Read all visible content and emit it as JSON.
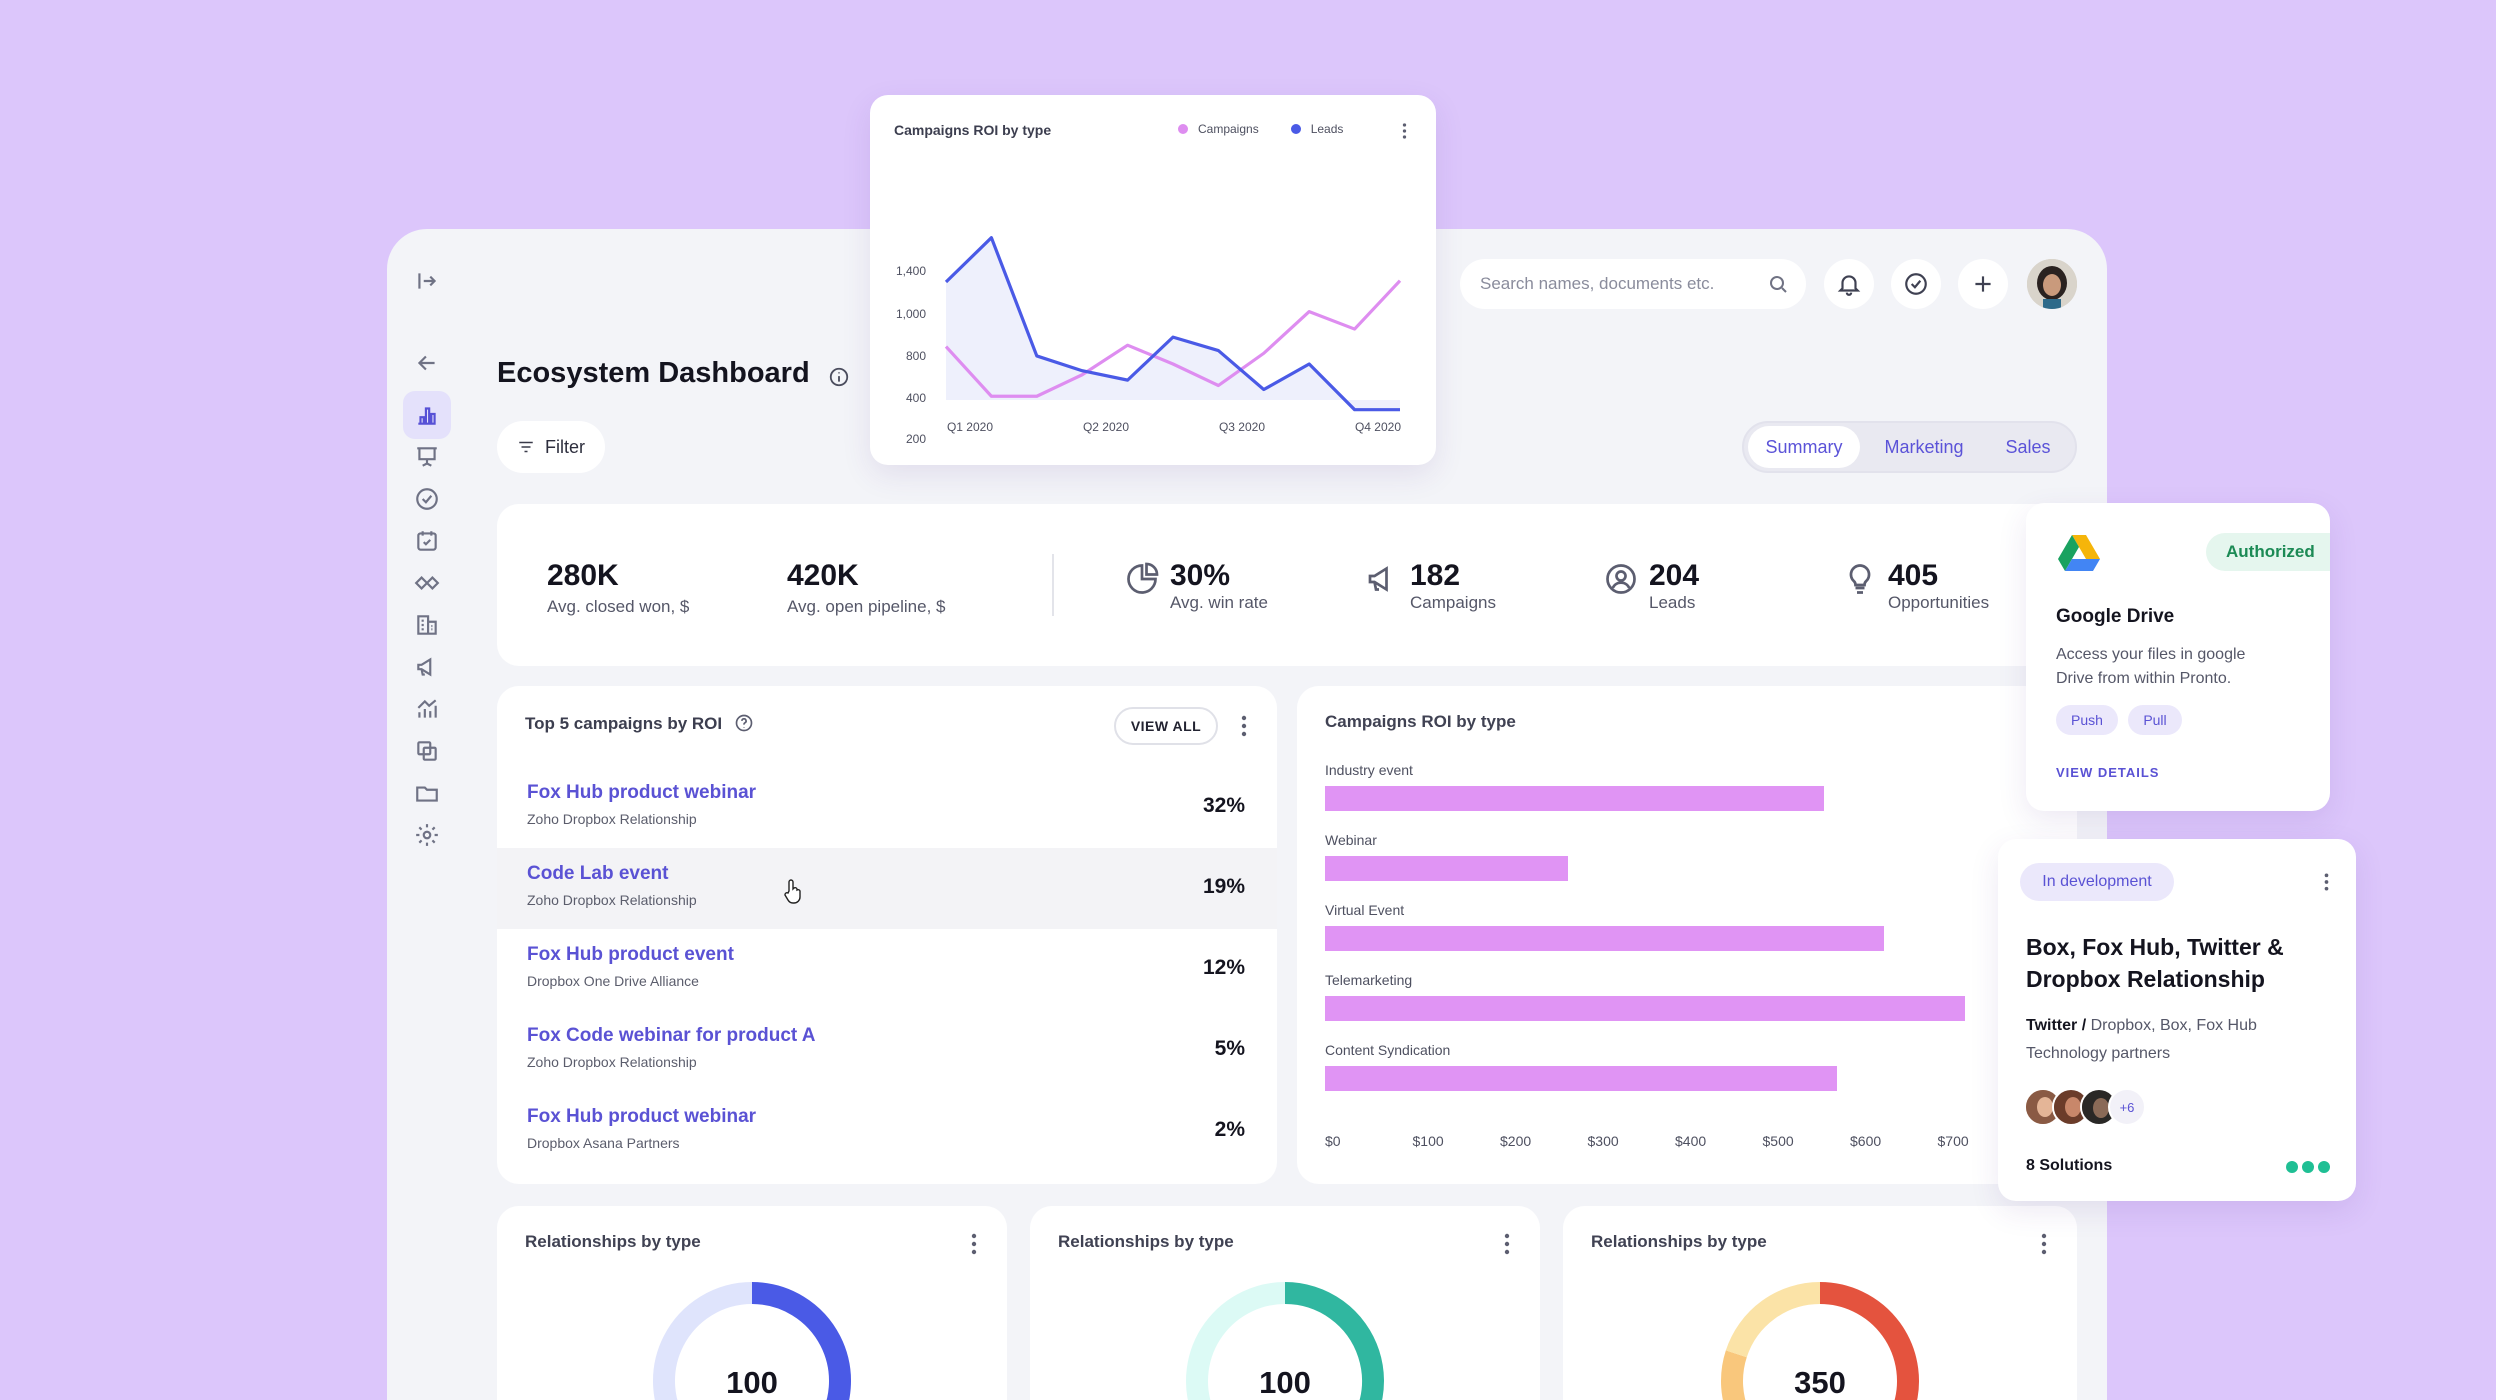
{
  "page": {
    "title": "Ecosystem Dashboard",
    "filter_label": "Filter"
  },
  "tabs": [
    {
      "label": "Summary",
      "active": true
    },
    {
      "label": "Marketing",
      "active": false
    },
    {
      "label": "Sales",
      "active": false
    }
  ],
  "search": {
    "placeholder": "Search names, documents etc."
  },
  "sidebar": {
    "items": [
      {
        "icon": "bar-chart-icon",
        "active": true
      },
      {
        "icon": "presentation-icon"
      },
      {
        "icon": "check-circle-icon"
      },
      {
        "icon": "calendar-check-icon"
      },
      {
        "icon": "handshake-icon"
      },
      {
        "icon": "building-icon"
      },
      {
        "icon": "megaphone-icon"
      },
      {
        "icon": "chart-growth-icon"
      },
      {
        "icon": "copy-layers-icon"
      },
      {
        "icon": "folder-icon"
      },
      {
        "icon": "settings-icon"
      }
    ]
  },
  "kpis": [
    {
      "value": "280K",
      "label": "Avg. closed won, $"
    },
    {
      "value": "420K",
      "label": "Avg. open pipeline, $"
    },
    {
      "value": "30%",
      "label": "Avg. win rate",
      "icon": "pie-chart-icon"
    },
    {
      "value": "182",
      "label": "Campaigns",
      "icon": "megaphone-icon"
    },
    {
      "value": "204",
      "label": "Leads",
      "icon": "user-circle-icon"
    },
    {
      "value": "405",
      "label": "Opportunities",
      "icon": "lightbulb-icon"
    }
  ],
  "top_campaigns": {
    "title": "Top 5 campaigns by ROI",
    "view_all": "VIEW ALL",
    "rows": [
      {
        "name": "Fox Hub product webinar",
        "sub": "Zoho Dropbox Relationship",
        "pct": "32%"
      },
      {
        "name": "Code Lab event",
        "sub": "Zoho Dropbox Relationship",
        "pct": "19%"
      },
      {
        "name": "Fox Hub product event",
        "sub": "Dropbox One Drive Alliance",
        "pct": "12%"
      },
      {
        "name": "Fox Code webinar for product A",
        "sub": "Zoho Dropbox Relationship",
        "pct": "5%"
      },
      {
        "name": "Fox Hub product webinar",
        "sub": "Dropbox Asana Partners",
        "pct": "2%"
      }
    ]
  },
  "chart_data": [
    {
      "type": "line",
      "title": "Campaigns ROI by type",
      "categories": [
        "Q1 2020",
        "Q2 2020",
        "Q3 2020",
        "Q4 2020"
      ],
      "x": [
        0,
        1,
        2,
        3,
        4,
        5,
        6,
        7,
        8,
        9,
        10
      ],
      "yticks": [
        "1,400",
        "1,000",
        "800",
        "400",
        "200",
        "0"
      ],
      "series": [
        {
          "name": "Campaigns",
          "color": "#de8df0",
          "values": [
            770,
            400,
            400,
            560,
            780,
            640,
            480,
            720,
            1030,
            900,
            1260
          ]
        },
        {
          "name": "Leads",
          "color": "#4a5ae6",
          "values": [
            1250,
            1580,
            700,
            590,
            520,
            840,
            740,
            450,
            640,
            300,
            300
          ]
        }
      ]
    },
    {
      "type": "bar",
      "orientation": "horizontal",
      "title": "Campaigns ROI by type",
      "categories": [
        "Industry event",
        "Webinar",
        "Virtual Event",
        "Telemarketing",
        "Content Syndication"
      ],
      "values": [
        585,
        285,
        655,
        750,
        600
      ],
      "xticks": [
        "$0",
        "$100",
        "$200",
        "$300",
        "$400",
        "$500",
        "$600",
        "$700"
      ],
      "xlim": [
        0,
        750
      ],
      "color": "#e094f4"
    },
    {
      "type": "pie",
      "title": "Relationships by type",
      "center_value": "100",
      "values": [
        35,
        30,
        35
      ],
      "colors": [
        "#4a5ae6",
        "#aab6f5",
        "#dfe4fc"
      ]
    },
    {
      "type": "pie",
      "title": "Relationships by type",
      "center_value": "100",
      "values": [
        40,
        30,
        30
      ],
      "colors": [
        "#30b7a0",
        "#9ee8dc",
        "#dcfaf5"
      ]
    },
    {
      "type": "pie",
      "title": "Relationships by type",
      "center_value": "350",
      "values": [
        30,
        25,
        25,
        20
      ],
      "colors": [
        "#e4533e",
        "#f08a5c",
        "#f9c77c",
        "#fbe3a7"
      ]
    }
  ],
  "google_drive": {
    "badge": "Authorized",
    "title": "Google Drive",
    "desc_line1": "Access your files in google",
    "desc_line2": "Drive from within Pronto.",
    "tags": [
      "Push",
      "Pull"
    ],
    "link": "VIEW DETAILS"
  },
  "dev_card": {
    "badge": "In development",
    "title_line1": "Box, Fox Hub, Twitter &",
    "title_line2": "Dropbox Relationship",
    "partner_bold": "Twitter /",
    "partner_rest": " Dropbox, Box, Fox Hub",
    "partner_line2": "Technology partners",
    "more_count": "+6",
    "solutions": "8 Solutions"
  }
}
